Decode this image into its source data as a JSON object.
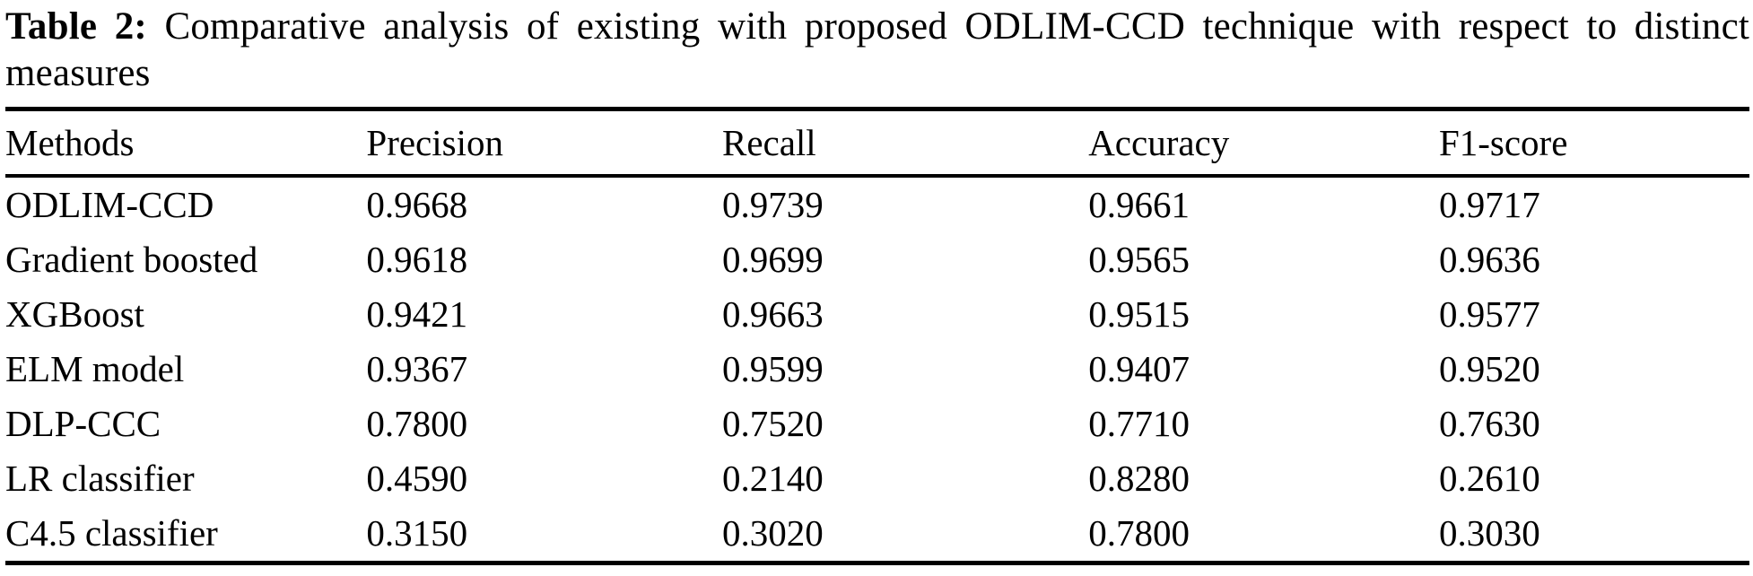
{
  "caption": {
    "label": "Table 2:",
    "text": "Comparative analysis of existing with proposed ODLIM-CCD technique with respect to distinct measures"
  },
  "chart_data": {
    "type": "table",
    "title": "Table 2: Comparative analysis of existing with proposed ODLIM-CCD technique with respect to distinct measures",
    "columns": [
      "Methods",
      "Precision",
      "Recall",
      "Accuracy",
      "F1-score"
    ],
    "rows": [
      [
        "ODLIM-CCD",
        "0.9668",
        "0.9739",
        "0.9661",
        "0.9717"
      ],
      [
        "Gradient boosted",
        "0.9618",
        "0.9699",
        "0.9565",
        "0.9636"
      ],
      [
        "XGBoost",
        "0.9421",
        "0.9663",
        "0.9515",
        "0.9577"
      ],
      [
        "ELM model",
        "0.9367",
        "0.9599",
        "0.9407",
        "0.9520"
      ],
      [
        "DLP-CCC",
        "0.7800",
        "0.7520",
        "0.7710",
        "0.7630"
      ],
      [
        "LR classifier",
        "0.4590",
        "0.2140",
        "0.8280",
        "0.2610"
      ],
      [
        "C4.5 classifier",
        "0.3150",
        "0.3020",
        "0.7800",
        "0.3030"
      ]
    ],
    "text_color": "#000000",
    "background_color": "#ffffff",
    "grid": "horizontal-rules-only"
  }
}
